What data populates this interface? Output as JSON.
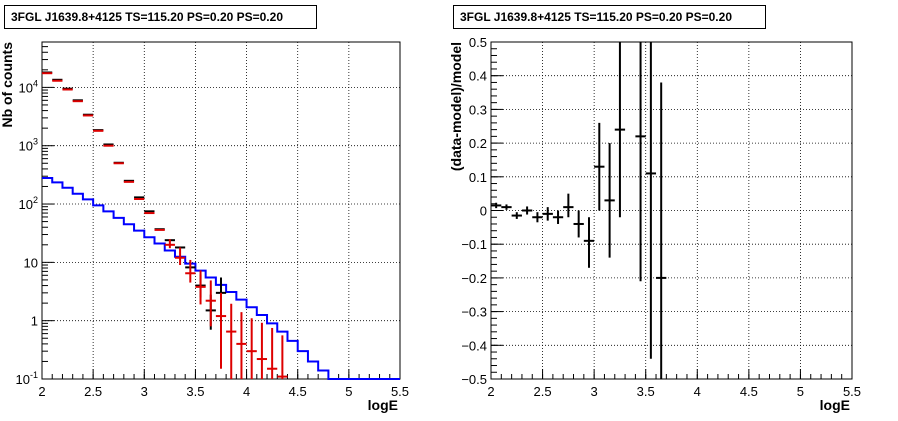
{
  "chart_data": [
    {
      "type": "scatter",
      "title": "3FGL J1639.8+4125 TS=115.20 PS=0.20 PS=0.20",
      "xlabel": "logE",
      "ylabel": "Nb of counts",
      "xlim": [
        2,
        5.5
      ],
      "ylim": [
        0.1,
        60000
      ],
      "yscale": "log",
      "grid": true,
      "xticks": [
        "2",
        "2.5",
        "3",
        "3.5",
        "4",
        "4.5",
        "5",
        "5.5"
      ],
      "yticks": [
        {
          "value": 0.1,
          "label": "10-1",
          "base": "10",
          "exp": "-1"
        },
        {
          "value": 1,
          "label": "1"
        },
        {
          "value": 10,
          "label": "10"
        },
        {
          "value": 100,
          "label": "102",
          "base": "10",
          "exp": "2"
        },
        {
          "value": 1000,
          "label": "103",
          "base": "10",
          "exp": "3"
        },
        {
          "value": 10000,
          "label": "104",
          "base": "10",
          "exp": "4"
        }
      ],
      "series": [
        {
          "color": "#0000ff",
          "kind": "step",
          "x_edges": [
            2.0,
            2.1,
            2.2,
            2.3,
            2.4,
            2.5,
            2.6,
            2.7,
            2.8,
            2.9,
            3.0,
            3.1,
            3.2,
            3.3,
            3.4,
            3.5,
            3.6,
            3.7,
            3.8,
            3.9,
            4.0,
            4.1,
            4.2,
            4.3,
            4.4,
            4.5,
            4.6,
            4.7,
            4.8,
            4.9,
            5.0,
            5.1,
            5.2,
            5.3,
            5.4,
            5.5
          ],
          "values": [
            280,
            235,
            190,
            150,
            120,
            95,
            75,
            58,
            45,
            35,
            27,
            21,
            16,
            12.5,
            9.5,
            7.2,
            5.5,
            4.1,
            3.1,
            2.3,
            1.7,
            1.25,
            0.9,
            0.65,
            0.45,
            0.3,
            0.2,
            0.14,
            0.1,
            0.1,
            0.1,
            0.1,
            0.1,
            0.1,
            0.1
          ]
        },
        {
          "color": "#000000",
          "kind": "points",
          "x": [
            2.05,
            2.15,
            2.25,
            2.35,
            2.45,
            2.55,
            2.65,
            2.75,
            2.85,
            2.95,
            3.05,
            3.15,
            3.25,
            3.35,
            3.45,
            3.55,
            3.65,
            3.75
          ],
          "y": [
            18000,
            13500,
            9500,
            6000,
            3400,
            1850,
            1050,
            510,
            250,
            130,
            75,
            37,
            24,
            18,
            8.2,
            4,
            1.5,
            3
          ],
          "err_low": [
            0,
            0,
            0,
            0,
            0,
            0,
            0,
            0,
            0,
            0,
            0,
            0,
            0,
            0,
            0,
            1.5,
            0.8,
            1.5
          ],
          "err_high": [
            0,
            0,
            0,
            0,
            0,
            0,
            0,
            0,
            0,
            0,
            0,
            0,
            0,
            0,
            0,
            2.2,
            1.3,
            2.5
          ]
        },
        {
          "color": "#dd0000",
          "kind": "points",
          "x": [
            2.05,
            2.15,
            2.25,
            2.35,
            2.45,
            2.55,
            2.65,
            2.75,
            2.85,
            2.95,
            3.05,
            3.15,
            3.25,
            3.35,
            3.45,
            3.55,
            3.65,
            3.75,
            3.85,
            3.95,
            4.05,
            4.15,
            4.25,
            4.35
          ],
          "y": [
            17500,
            13000,
            9200,
            5800,
            3300,
            1800,
            1000,
            500,
            240,
            122,
            70,
            36,
            20,
            12,
            6.5,
            3.8,
            2.2,
            1.2,
            0.65,
            0.4,
            0.3,
            0.22,
            0.15,
            0.11
          ],
          "err_low": [
            0,
            0,
            0,
            0,
            0,
            0,
            0,
            0,
            0,
            0,
            0,
            0,
            2.5,
            3,
            2,
            1.9,
            1.4,
            1.05,
            0.6,
            0.38,
            0.28,
            0.2,
            0.14,
            0.1
          ],
          "err_high": [
            0,
            0,
            0,
            0,
            0,
            0,
            0,
            0,
            0,
            0,
            0,
            0,
            5,
            6,
            4.5,
            3.5,
            2.7,
            1.8,
            1.3,
            1.0,
            0.8,
            0.7,
            0.6,
            0.45
          ]
        }
      ]
    },
    {
      "type": "scatter",
      "title": "3FGL J1639.8+4125 TS=115.20 PS=0.20 PS=0.20",
      "xlabel": "logE",
      "ylabel": "(data-model)/model",
      "xlim": [
        2,
        5.5
      ],
      "ylim": [
        -0.5,
        0.5
      ],
      "grid": true,
      "xticks": [
        "2",
        "2.5",
        "3",
        "3.5",
        "4",
        "4.5",
        "5",
        "5.5"
      ],
      "yticks": [
        "−0.5",
        "−0.4",
        "−0.3",
        "−0.2",
        "−0.1",
        "0",
        "0.1",
        "0.2",
        "0.3",
        "0.4",
        "0.5"
      ],
      "series": [
        {
          "color": "#000000",
          "kind": "points",
          "x": [
            2.05,
            2.15,
            2.25,
            2.35,
            2.45,
            2.55,
            2.65,
            2.75,
            2.85,
            2.95,
            3.05,
            3.15,
            3.25,
            3.45,
            3.55,
            3.65
          ],
          "y": [
            0.015,
            0.01,
            -0.015,
            0.0,
            -0.02,
            -0.01,
            -0.02,
            0.01,
            -0.04,
            -0.09,
            0.13,
            0.03,
            0.24,
            0.22,
            0.11,
            -0.2
          ],
          "err_low": [
            0.008,
            0.008,
            0.01,
            0.012,
            0.015,
            0.02,
            0.02,
            0.03,
            0.04,
            0.08,
            0.13,
            0.17,
            0.26,
            0.43,
            0.55,
            0.4
          ],
          "err_high": [
            0.008,
            0.008,
            0.01,
            0.012,
            0.015,
            0.02,
            0.02,
            0.04,
            0.04,
            0.07,
            0.13,
            0.17,
            0.26,
            0.43,
            0.55,
            0.58
          ]
        }
      ]
    }
  ]
}
